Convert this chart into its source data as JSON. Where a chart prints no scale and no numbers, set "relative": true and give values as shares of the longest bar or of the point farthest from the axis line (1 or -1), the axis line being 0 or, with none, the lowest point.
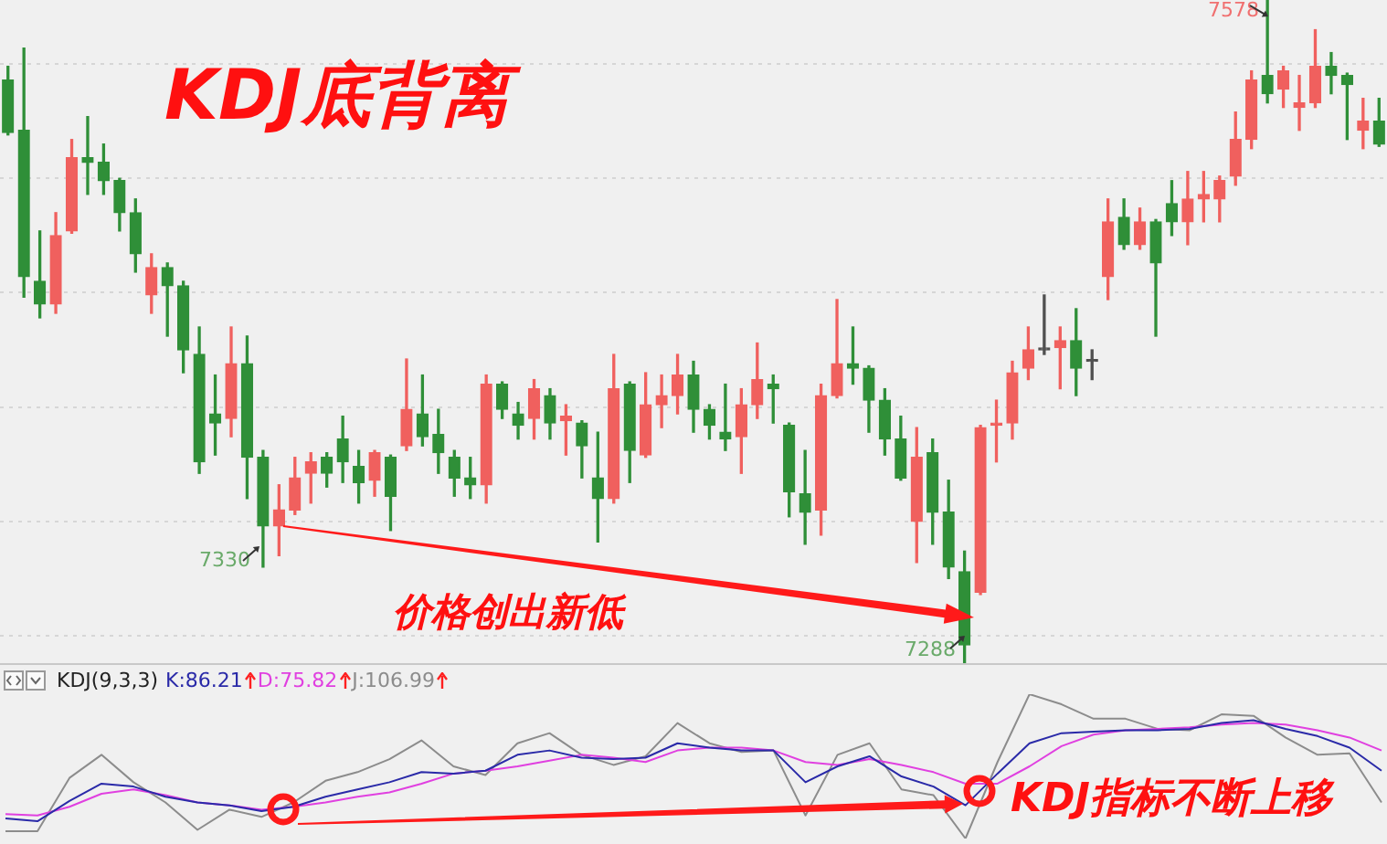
{
  "chart_data": [
    {
      "type": "candlestick",
      "title": "KDJ底背离",
      "categories": [
        null,
        null,
        null,
        null,
        null,
        null,
        null,
        null,
        null,
        null,
        null,
        null,
        null,
        null,
        null,
        null,
        null,
        null,
        null,
        null,
        null,
        null,
        null,
        null,
        null,
        null,
        null,
        null,
        null,
        null,
        null,
        null,
        null,
        null,
        null,
        null,
        null,
        null,
        null,
        null,
        null,
        null,
        null,
        null,
        null,
        null,
        null,
        null,
        null,
        null,
        null,
        null,
        null,
        null,
        null,
        null,
        null,
        null,
        null,
        null,
        null,
        null,
        null,
        null,
        null,
        null,
        null,
        null,
        null,
        null,
        null,
        null,
        null,
        null,
        null,
        null,
        null,
        null,
        null,
        null,
        null,
        null,
        null,
        null,
        null,
        null,
        null
      ],
      "ohlc": [
        [
          7543,
          7549,
          7519,
          7520
        ],
        [
          7521,
          7557,
          7448,
          7457
        ],
        [
          7455,
          7477,
          7439,
          7445
        ],
        [
          7445,
          7485,
          7441,
          7475
        ],
        [
          7477,
          7517,
          7476,
          7509
        ],
        [
          7509,
          7527,
          7493,
          7507
        ],
        [
          7507,
          7515,
          7493,
          7499
        ],
        [
          7499,
          7500,
          7477,
          7485
        ],
        [
          7485,
          7491,
          7459,
          7467
        ],
        [
          7449,
          7467,
          7441,
          7461
        ],
        [
          7461,
          7463,
          7431,
          7453
        ],
        [
          7453,
          7455,
          7415,
          7425
        ],
        [
          7423,
          7435,
          7371,
          7376
        ],
        [
          7397,
          7414,
          7379,
          7393
        ],
        [
          7395,
          7435,
          7387,
          7419
        ],
        [
          7419,
          7431,
          7360,
          7378
        ],
        [
          7378,
          7381,
          7330,
          7348
        ],
        [
          7348,
          7366,
          7335,
          7355
        ],
        [
          7355,
          7378,
          7353,
          7369
        ],
        [
          7371,
          7380,
          7358,
          7376
        ],
        [
          7378,
          7380,
          7365,
          7371
        ],
        [
          7386,
          7396,
          7367,
          7376
        ],
        [
          7374,
          7381,
          7358,
          7367
        ],
        [
          7368,
          7381,
          7361,
          7380
        ],
        [
          7378,
          7379,
          7346,
          7361
        ],
        [
          7383,
          7421,
          7381,
          7399
        ],
        [
          7397,
          7414,
          7383,
          7387
        ],
        [
          7388,
          7399,
          7371,
          7380
        ],
        [
          7378,
          7381,
          7361,
          7369
        ],
        [
          7369,
          7378,
          7360,
          7366
        ],
        [
          7366,
          7414,
          7358,
          7410
        ],
        [
          7410,
          7411,
          7395,
          7399
        ],
        [
          7397,
          7402,
          7386,
          7392
        ],
        [
          7395,
          7412,
          7386,
          7408
        ],
        [
          7405,
          7408,
          7386,
          7393
        ],
        [
          7394,
          7401,
          7379,
          7396
        ],
        [
          7393,
          7394,
          7369,
          7383
        ],
        [
          7369,
          7389,
          7341,
          7360
        ],
        [
          7360,
          7423,
          7358,
          7408
        ],
        [
          7410,
          7411,
          7367,
          7381
        ],
        [
          7379,
          7415,
          7378,
          7401
        ],
        [
          7401,
          7414,
          7391,
          7405
        ],
        [
          7405,
          7423,
          7397,
          7414
        ],
        [
          7414,
          7420,
          7389,
          7399
        ],
        [
          7399,
          7401,
          7386,
          7392
        ],
        [
          7389,
          7410,
          7381,
          7386
        ],
        [
          7387,
          7408,
          7371,
          7401
        ],
        [
          7401,
          7428,
          7395,
          7412
        ],
        [
          7410,
          7414,
          7393,
          7408
        ],
        [
          7392,
          7393,
          7352,
          7363
        ],
        [
          7362,
          7381,
          7340,
          7354
        ],
        [
          7355,
          7410,
          7344,
          7405
        ],
        [
          7405,
          7447,
          7404,
          7419
        ],
        [
          7419,
          7435,
          7410,
          7417
        ],
        [
          7417,
          7418,
          7389,
          7403
        ],
        [
          7403,
          7408,
          7379,
          7386
        ],
        [
          7386,
          7396,
          7368,
          7369
        ],
        [
          7350,
          7391,
          7332,
          7378
        ],
        [
          7380,
          7386,
          7340,
          7354
        ],
        [
          7354,
          7368,
          7325,
          7330
        ],
        [
          7328,
          7337,
          7288,
          7296
        ],
        [
          7319,
          7392,
          7318,
          7391
        ],
        [
          7392,
          7403,
          7376,
          7393
        ],
        [
          7393,
          7420,
          7386,
          7415
        ],
        [
          7417,
          7435,
          7412,
          7425
        ],
        [
          7425,
          7449,
          7423,
          7425
        ],
        [
          7426,
          7435,
          7408,
          7429
        ],
        [
          7429,
          7443,
          7405,
          7417
        ],
        [
          7420,
          7425,
          7412,
          7420
        ],
        [
          7457,
          7491,
          7447,
          7481
        ],
        [
          7483,
          7491,
          7469,
          7471
        ],
        [
          7471,
          7487,
          7469,
          7481
        ],
        [
          7481,
          7482,
          7431,
          7463
        ],
        [
          7489,
          7499,
          7475,
          7481
        ],
        [
          7481,
          7503,
          7471,
          7491
        ],
        [
          7491,
          7503,
          7481,
          7493
        ],
        [
          7491,
          7501,
          7481,
          7499
        ],
        [
          7501,
          7529,
          7497,
          7517
        ],
        [
          7517,
          7547,
          7513,
          7543
        ],
        [
          7545,
          7578,
          7533,
          7537
        ],
        [
          7539,
          7549,
          7531,
          7547
        ],
        [
          7531,
          7545,
          7521,
          7533
        ],
        [
          7533,
          7565,
          7531,
          7549
        ],
        [
          7549,
          7555,
          7537,
          7545
        ],
        [
          7545,
          7546,
          7517,
          7541
        ],
        [
          7521,
          7535,
          7513,
          7525
        ],
        [
          7525,
          7535,
          7514,
          7515
        ]
      ],
      "colors": [
        "#2f8f38",
        "#2f8f38",
        "#2f8f38",
        "#f0605e",
        "#f0605e",
        "#2f8f38",
        "#2f8f38",
        "#2f8f38",
        "#2f8f38",
        "#f0605e",
        "#2f8f38",
        "#2f8f38",
        "#2f8f38",
        "#2f8f38",
        "#f0605e",
        "#2f8f38",
        "#2f8f38",
        "#f0605e",
        "#f0605e",
        "#f0605e",
        "#2f8f38",
        "#2f8f38",
        "#2f8f38",
        "#f0605e",
        "#2f8f38",
        "#f0605e",
        "#2f8f38",
        "#2f8f38",
        "#2f8f38",
        "#2f8f38",
        "#f0605e",
        "#2f8f38",
        "#2f8f38",
        "#f0605e",
        "#2f8f38",
        "#f0605e",
        "#2f8f38",
        "#2f8f38",
        "#f0605e",
        "#2f8f38",
        "#f0605e",
        "#f0605e",
        "#f0605e",
        "#2f8f38",
        "#2f8f38",
        "#2f8f38",
        "#f0605e",
        "#f0605e",
        "#2f8f38",
        "#2f8f38",
        "#2f8f38",
        "#f0605e",
        "#f0605e",
        "#2f8f38",
        "#2f8f38",
        "#2f8f38",
        "#2f8f38",
        "#f0605e",
        "#2f8f38",
        "#2f8f38",
        "#2f8f38",
        "#f0605e",
        "#f0605e",
        "#f0605e",
        "#f0605e",
        "#505050",
        "#f0605e",
        "#2f8f38",
        "#505050",
        "#f0605e",
        "#2f8f38",
        "#f0605e",
        "#2f8f38",
        "#2f8f38",
        "#f0605e",
        "#f0605e",
        "#f0605e",
        "#f0605e",
        "#f0605e",
        "#2f8f38",
        "#f0605e",
        "#f0605e",
        "#f0605e",
        "#2f8f38",
        "#2f8f38",
        "#f0605e",
        "#2f8f38"
      ],
      "yticks": [
        {
          "value": 7300,
          "label": null
        },
        {
          "value": 7350,
          "label": null
        },
        {
          "value": 7400,
          "label": null
        },
        {
          "value": 7450,
          "label": null
        },
        {
          "value": 7500,
          "label": null
        },
        {
          "value": 7550,
          "label": null
        }
      ],
      "grid": "y",
      "tick_labels": false,
      "annotations": [
        "价格创出新低",
        "7330",
        "7288",
        "7578"
      ]
    },
    {
      "type": "line",
      "title": "KDJ(9,3,3)",
      "categories": [
        null,
        null,
        null,
        null,
        null,
        null,
        null,
        null,
        null,
        null,
        null,
        null,
        null,
        null,
        null,
        null,
        null,
        null,
        null,
        null,
        null,
        null,
        null,
        null,
        null,
        null,
        null,
        null,
        null,
        null,
        null,
        null,
        null,
        null,
        null,
        null,
        null,
        null,
        null,
        null,
        null,
        null,
        null,
        null
      ],
      "relative": true,
      "marker": "none",
      "legend": "top left",
      "series": [
        {
          "name": "K:86.21",
          "color": "#2a2aa8",
          "values": [
            0.14,
            0.12,
            0.26,
            0.38,
            0.36,
            0.29,
            0.25,
            0.23,
            0.19,
            0.22,
            0.29,
            0.34,
            0.39,
            0.46,
            0.45,
            0.47,
            0.58,
            0.61,
            0.56,
            0.55,
            0.56,
            0.66,
            0.63,
            0.61,
            0.61,
            0.39,
            0.5,
            0.57,
            0.43,
            0.36,
            0.23,
            0.45,
            0.66,
            0.73,
            0.74,
            0.75,
            0.75,
            0.76,
            0.8,
            0.82,
            0.76,
            0.71,
            0.63,
            0.47
          ]
        },
        {
          "name": "D:75.82",
          "color": "#e040e0",
          "values": [
            0.17,
            0.16,
            0.22,
            0.31,
            0.34,
            0.3,
            0.25,
            0.23,
            0.2,
            0.22,
            0.25,
            0.29,
            0.32,
            0.38,
            0.45,
            0.47,
            0.5,
            0.54,
            0.58,
            0.56,
            0.53,
            0.61,
            0.63,
            0.63,
            0.61,
            0.53,
            0.51,
            0.55,
            0.51,
            0.46,
            0.38,
            0.38,
            0.5,
            0.64,
            0.72,
            0.75,
            0.76,
            0.77,
            0.79,
            0.8,
            0.79,
            0.75,
            0.7,
            0.61
          ]
        },
        {
          "name": "J:106.99",
          "color": "#8c8c8c",
          "values": [
            0.05,
            0.05,
            0.42,
            0.58,
            0.39,
            0.25,
            0.06,
            0.2,
            0.15,
            0.25,
            0.4,
            0.46,
            0.55,
            0.68,
            0.5,
            0.44,
            0.66,
            0.73,
            0.58,
            0.51,
            0.57,
            0.8,
            0.66,
            0.6,
            0.61,
            0.16,
            0.58,
            0.66,
            0.34,
            0.3,
            0,
            0.53,
            1,
            0.93,
            0.83,
            0.83,
            0.76,
            0.75,
            0.86,
            0.85,
            0.7,
            0.58,
            0.59,
            0.25
          ]
        }
      ],
      "annotations": [
        "KDJ指标不断上移"
      ]
    }
  ]
}
